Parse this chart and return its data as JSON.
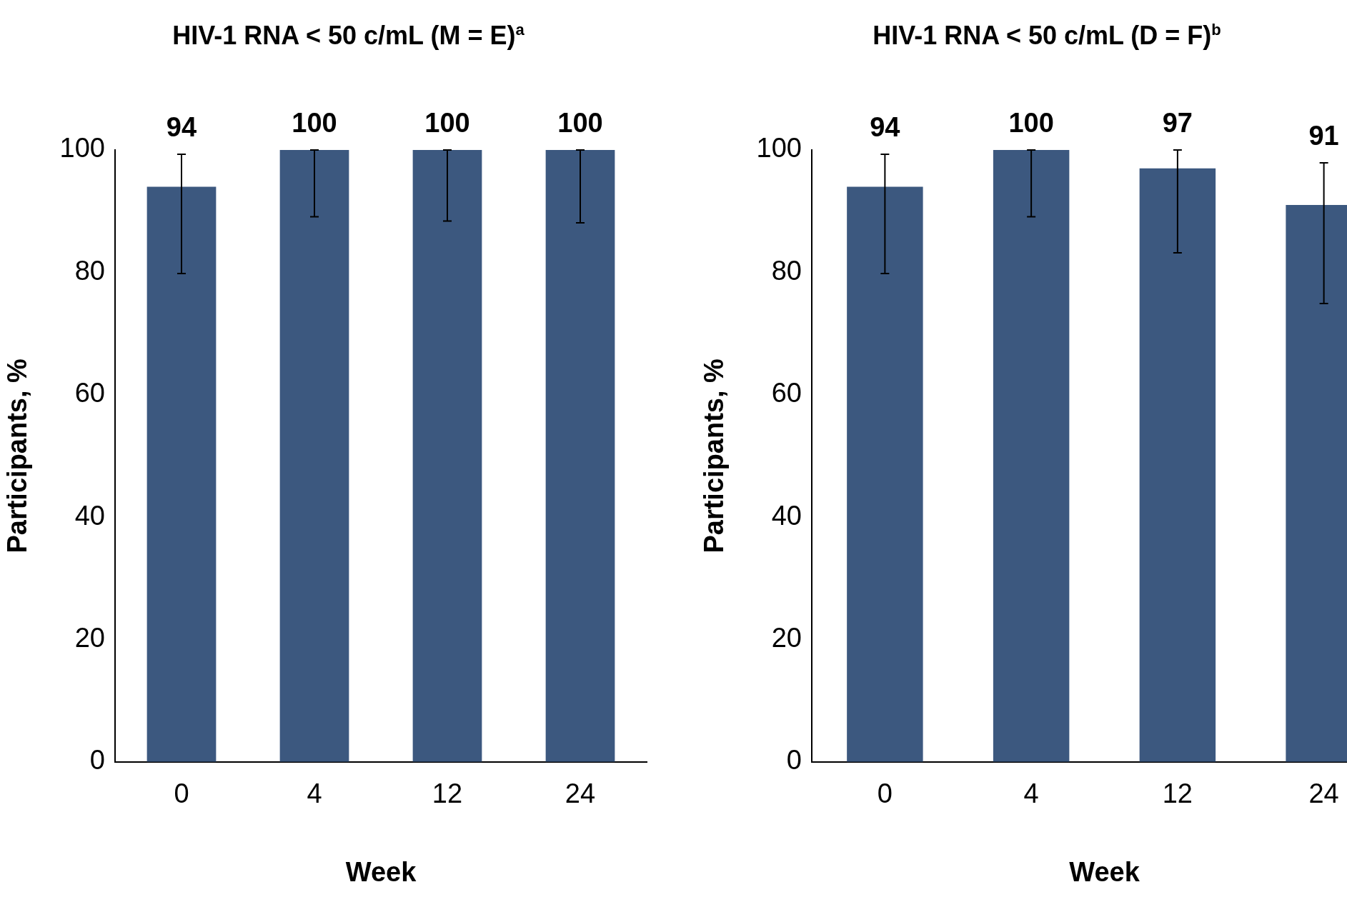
{
  "chart_data": [
    {
      "type": "bar",
      "title": "HIV-1 RNA < 50 c/mL (M = E)$^{a}$",
      "xlabel": "Week",
      "ylabel": "Participants, %",
      "categories": [
        "0",
        "4",
        "12",
        "24"
      ],
      "values": [
        94,
        100,
        100,
        100
      ],
      "color": "#3c587f",
      "errors": [
        [
          79.8,
          99.3
        ],
        [
          89.1,
          100
        ],
        [
          88.4,
          100
        ],
        [
          88.1,
          100
        ]
      ],
      "ylim": [
        0,
        100
      ],
      "yticks": [
        0,
        20,
        40,
        60,
        80,
        100
      ],
      "data_labels": true
    },
    {
      "type": "bar",
      "title": "HIV-1 RNA < 50 c/mL (D = F)$^{b}$",
      "xlabel": "Week",
      "ylabel": "Participants, %",
      "categories": [
        "0",
        "4",
        "12",
        "24"
      ],
      "values": [
        94,
        100,
        97,
        91
      ],
      "color": "#3c587f",
      "errors": [
        [
          79.8,
          99.3
        ],
        [
          89.1,
          100
        ],
        [
          83.2,
          100
        ],
        [
          74.9,
          97.9
        ]
      ],
      "ylim": [
        0,
        100
      ],
      "yticks": [
        0,
        20,
        40,
        60,
        80,
        100
      ],
      "data_labels": true
    }
  ]
}
